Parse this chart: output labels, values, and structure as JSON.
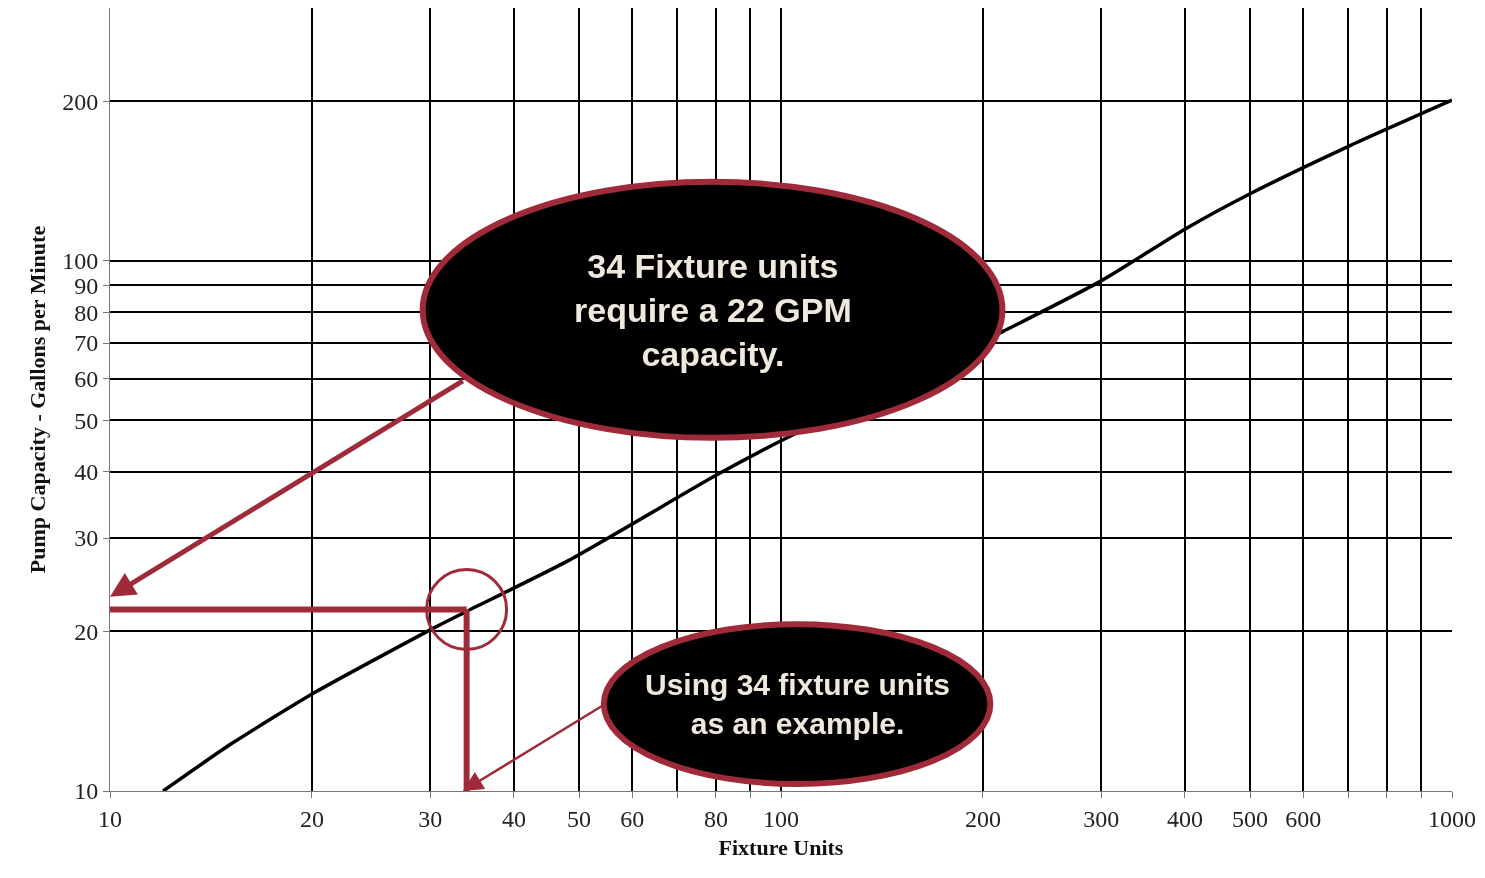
{
  "chart_data": {
    "type": "line",
    "xlabel": "Fixture Units",
    "ylabel": "Pump Capacity - Gallons per Minute",
    "x": [
      12.0,
      15.2,
      20.3,
      30.6,
      33.7,
      48.2,
      80,
      100,
      215,
      300,
      401,
      501,
      705,
      1000
    ],
    "series": [
      {
        "color": "#000000",
        "values": [
          10,
          12.3,
          15.4,
          20.4,
          21.7,
          27.2,
          39.4,
          45.8,
          73.8,
          91.7,
          115,
          134,
          165,
          201
        ]
      }
    ],
    "log": "xy",
    "xlim": [
      10,
      1000
    ],
    "ylim": [
      10,
      300
    ],
    "xticks": [
      10,
      20,
      30,
      40,
      50,
      60,
      {
        "value": 70,
        "label": null
      },
      80,
      {
        "value": 90,
        "label": null
      },
      100,
      200,
      300,
      400,
      500,
      600,
      {
        "value": 700,
        "label": null
      },
      {
        "value": 800,
        "label": null
      },
      {
        "value": 900,
        "label": null
      },
      1000
    ],
    "yticks": [
      10,
      20,
      30,
      40,
      50,
      60,
      70,
      80,
      90,
      100,
      200
    ],
    "grid": true,
    "marker": "none",
    "line_style": "solid",
    "ref_lines": [
      {
        "axis": "y",
        "value": 22,
        "color": "#9e2a3a"
      },
      {
        "axis": "x",
        "value": 34,
        "color": "#9e2a3a"
      }
    ],
    "annotations": [
      "34 Fixture units require a 22 GPM capacity.",
      "Using 34 fixture units as an example."
    ]
  }
}
